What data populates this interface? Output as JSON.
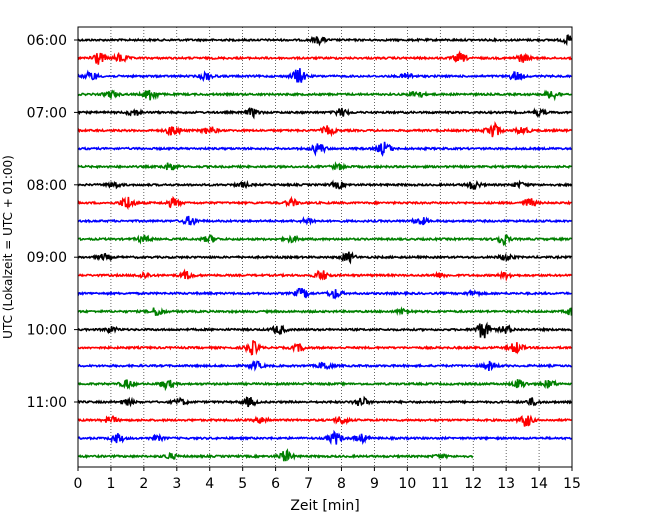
{
  "chart_data": {
    "type": "line",
    "title": "",
    "xlabel": "Zeit  [min]",
    "ylabel": "UTC (Lokalzeit = UTC + 01:00)",
    "xlim": [
      0,
      15
    ],
    "x_ticks": [
      "0",
      "1",
      "2",
      "3",
      "4",
      "5",
      "6",
      "7",
      "8",
      "9",
      "10",
      "11",
      "12",
      "13",
      "14",
      "15"
    ],
    "y_ticks": [
      "06:00",
      "07:00",
      "08:00",
      "09:00",
      "10:00",
      "11:00"
    ],
    "grid": "vertical dotted at each minute",
    "trace_interval_min": 15,
    "colors": [
      "#000000",
      "#ff0000",
      "#0000ff",
      "#008000"
    ],
    "traces": [
      {
        "start": "06:00",
        "end_min": 15,
        "color": "#000000",
        "events": [
          [
            7.3,
            0.6
          ],
          [
            14.9,
            0.7
          ]
        ]
      },
      {
        "start": "06:15",
        "end_min": 15,
        "color": "#ff0000",
        "events": [
          [
            0.6,
            1.2
          ],
          [
            1.3,
            0.8
          ],
          [
            11.6,
            0.8
          ],
          [
            13.5,
            0.7
          ]
        ]
      },
      {
        "start": "06:30",
        "end_min": 15,
        "color": "#0000ff",
        "events": [
          [
            0.4,
            0.8
          ],
          [
            3.9,
            0.7
          ],
          [
            6.7,
            1.4
          ],
          [
            10.0,
            0.5
          ],
          [
            13.3,
            0.8
          ]
        ]
      },
      {
        "start": "06:45",
        "end_min": 15,
        "color": "#008000",
        "events": [
          [
            1.0,
            0.6
          ],
          [
            2.2,
            1.1
          ],
          [
            10.3,
            0.6
          ],
          [
            14.4,
            0.8
          ]
        ]
      },
      {
        "start": "07:00",
        "end_min": 15,
        "color": "#000000",
        "events": [
          [
            1.7,
            0.6
          ],
          [
            5.3,
            0.7
          ],
          [
            8.0,
            0.7
          ],
          [
            14.0,
            0.5
          ]
        ]
      },
      {
        "start": "07:15",
        "end_min": 15,
        "color": "#ff0000",
        "events": [
          [
            2.9,
            1.0
          ],
          [
            4.0,
            0.7
          ],
          [
            7.6,
            0.8
          ],
          [
            12.6,
            1.5
          ],
          [
            13.5,
            0.7
          ]
        ]
      },
      {
        "start": "07:30",
        "end_min": 15,
        "color": "#0000ff",
        "events": [
          [
            7.3,
            1.0
          ],
          [
            9.3,
            1.2
          ]
        ]
      },
      {
        "start": "07:45",
        "end_min": 15,
        "color": "#008000",
        "events": [
          [
            2.8,
            0.7
          ],
          [
            7.9,
            0.5
          ]
        ]
      },
      {
        "start": "08:00",
        "end_min": 15,
        "color": "#000000",
        "events": [
          [
            1.1,
            0.5
          ],
          [
            5.0,
            0.4
          ],
          [
            7.9,
            0.6
          ],
          [
            12.0,
            0.8
          ],
          [
            13.4,
            0.4
          ]
        ]
      },
      {
        "start": "08:15",
        "end_min": 15,
        "color": "#ff0000",
        "events": [
          [
            1.5,
            1.2
          ],
          [
            2.9,
            0.8
          ],
          [
            6.5,
            0.6
          ],
          [
            13.7,
            0.8
          ]
        ]
      },
      {
        "start": "08:30",
        "end_min": 15,
        "color": "#0000ff",
        "events": [
          [
            3.4,
            0.8
          ],
          [
            7.0,
            0.5
          ],
          [
            10.4,
            0.7
          ]
        ]
      },
      {
        "start": "08:45",
        "end_min": 15,
        "color": "#008000",
        "events": [
          [
            2.0,
            0.6
          ],
          [
            4.0,
            0.6
          ],
          [
            6.5,
            0.5
          ],
          [
            12.9,
            0.9
          ]
        ]
      },
      {
        "start": "09:00",
        "end_min": 15,
        "color": "#000000",
        "events": [
          [
            0.8,
            0.5
          ],
          [
            8.2,
            0.9
          ],
          [
            13.0,
            0.6
          ]
        ]
      },
      {
        "start": "09:15",
        "end_min": 15,
        "color": "#ff0000",
        "events": [
          [
            2.0,
            0.5
          ],
          [
            3.3,
            0.7
          ],
          [
            7.4,
            0.9
          ],
          [
            11.0,
            0.4
          ],
          [
            13.0,
            0.5
          ]
        ]
      },
      {
        "start": "09:30",
        "end_min": 15,
        "color": "#0000ff",
        "events": [
          [
            6.8,
            0.9
          ],
          [
            7.8,
            0.8
          ],
          [
            12.0,
            0.4
          ]
        ]
      },
      {
        "start": "09:45",
        "end_min": 15,
        "color": "#008000",
        "events": [
          [
            2.4,
            0.8
          ],
          [
            9.9,
            0.5
          ],
          [
            15.0,
            0.7
          ]
        ]
      },
      {
        "start": "10:00",
        "end_min": 15,
        "color": "#000000",
        "events": [
          [
            1.0,
            0.5
          ],
          [
            6.1,
            0.8
          ],
          [
            12.3,
            1.6
          ],
          [
            13.0,
            0.7
          ]
        ]
      },
      {
        "start": "10:15",
        "end_min": 15,
        "color": "#ff0000",
        "events": [
          [
            5.3,
            1.2
          ],
          [
            6.7,
            0.6
          ],
          [
            13.3,
            1.0
          ]
        ]
      },
      {
        "start": "10:30",
        "end_min": 15,
        "color": "#0000ff",
        "events": [
          [
            5.4,
            0.7
          ],
          [
            7.5,
            0.7
          ],
          [
            12.5,
            0.8
          ]
        ]
      },
      {
        "start": "10:45",
        "end_min": 15,
        "color": "#008000",
        "events": [
          [
            1.5,
            0.7
          ],
          [
            2.7,
            0.8
          ],
          [
            13.4,
            0.8
          ],
          [
            14.3,
            0.7
          ]
        ]
      },
      {
        "start": "11:00",
        "end_min": 15,
        "color": "#000000",
        "events": [
          [
            1.5,
            0.5
          ],
          [
            3.1,
            0.6
          ],
          [
            5.2,
            0.8
          ],
          [
            8.6,
            0.9
          ],
          [
            13.8,
            0.6
          ]
        ]
      },
      {
        "start": "11:15",
        "end_min": 15,
        "color": "#ff0000",
        "events": [
          [
            1.0,
            0.6
          ],
          [
            5.6,
            0.6
          ],
          [
            8.0,
            0.7
          ],
          [
            13.6,
            1.1
          ]
        ]
      },
      {
        "start": "11:30",
        "end_min": 15,
        "color": "#0000ff",
        "events": [
          [
            1.2,
            0.8
          ],
          [
            2.4,
            0.4
          ],
          [
            7.8,
            1.1
          ],
          [
            8.6,
            0.7
          ]
        ]
      },
      {
        "start": "11:45",
        "end_min": 12,
        "color": "#008000",
        "events": [
          [
            2.8,
            0.5
          ],
          [
            6.3,
            1.0
          ],
          [
            11.0,
            0.3
          ]
        ]
      }
    ]
  }
}
